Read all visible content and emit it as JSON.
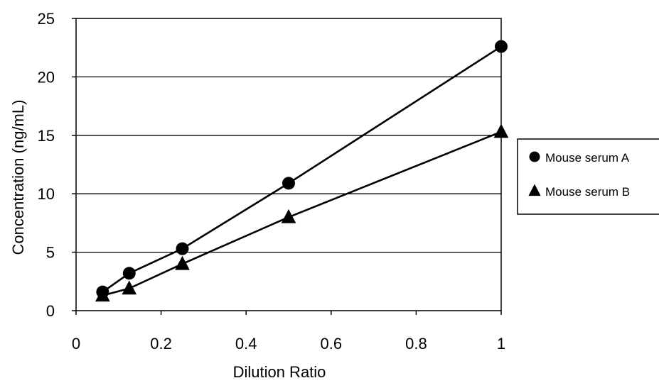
{
  "chart_data": {
    "type": "line",
    "title": "",
    "xlabel": "Dilution Ratio",
    "ylabel": "Concentration (ng/mL)",
    "xlim": [
      0,
      1
    ],
    "ylim": [
      0,
      25
    ],
    "x_ticks": [
      "0",
      "0.2",
      "0.4",
      "0.6",
      "0.8",
      "1"
    ],
    "y_ticks": [
      "0",
      "5",
      "10",
      "15",
      "20",
      "25"
    ],
    "grid": "horizontal",
    "legend_position": "right",
    "series": [
      {
        "name": "Mouse serum A",
        "marker": "circle",
        "color": "#000000",
        "x": [
          0.0625,
          0.125,
          0.25,
          0.5,
          1
        ],
        "y": [
          1.6,
          3.2,
          5.3,
          10.9,
          22.6
        ]
      },
      {
        "name": "Mouse serum B",
        "marker": "triangle",
        "color": "#000000",
        "x": [
          0.0625,
          0.125,
          0.25,
          0.5,
          1
        ],
        "y": [
          1.3,
          1.9,
          4.0,
          8.0,
          15.3
        ]
      }
    ]
  }
}
